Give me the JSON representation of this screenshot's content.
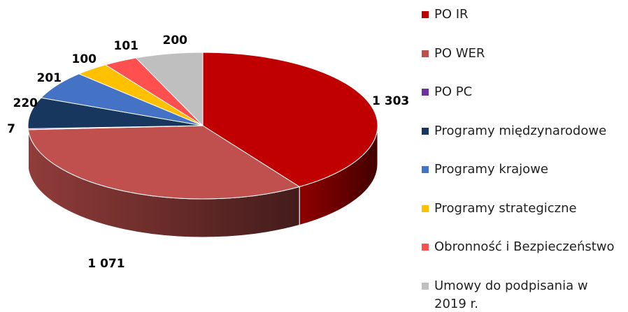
{
  "chart_data": {
    "type": "pie3d",
    "categories": [
      "PO IR",
      "PO WER",
      "PO PC",
      "Programy międzynarodowe",
      "Programy krajowe",
      "Programy strategiczne",
      "Obronność i Bezpieczeństwo",
      "Umowy do podpisania w 2019 r."
    ],
    "values": [
      1303,
      1071,
      7,
      220,
      201,
      100,
      101,
      200
    ],
    "value_labels": [
      "1 303",
      "1 071",
      "7",
      "220",
      "201",
      "100",
      "101",
      "200"
    ],
    "colors": [
      "#c00000",
      "#c0504d",
      "#7030a0",
      "#17375e",
      "#4472c4",
      "#ffc000",
      "#ff4f4f",
      "#bfbfbf"
    ],
    "legend": "right"
  }
}
